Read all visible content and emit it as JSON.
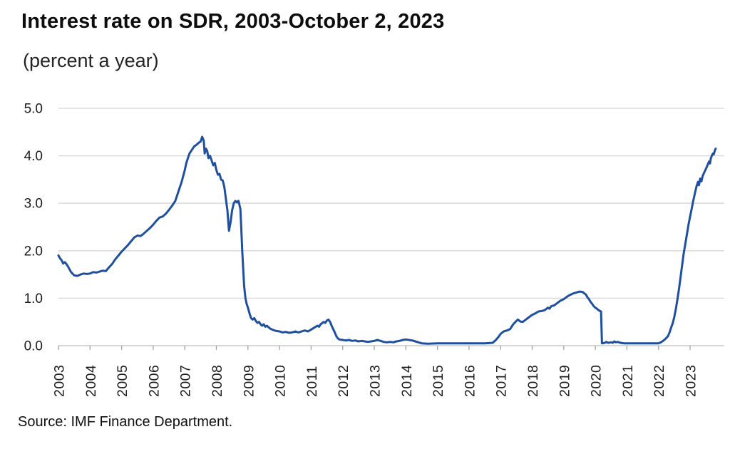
{
  "chart_data": {
    "type": "line",
    "title": "Interest rate on SDR, 2003-October 2, 2023",
    "subtitle": "(percent a year)",
    "source": "Source: IMF Finance Department.",
    "xlabel": "",
    "ylabel": "",
    "legend": "none",
    "grid": "horizontal",
    "x_domain": [
      2003,
      2024
    ],
    "ylim": [
      0.0,
      5.0
    ],
    "y_ticks": [
      {
        "value": 5,
        "label": "5.0"
      },
      {
        "value": 4,
        "label": "4.0"
      },
      {
        "value": 3,
        "label": "3.0"
      },
      {
        "value": 2,
        "label": "2.0"
      },
      {
        "value": 1,
        "label": "1.0"
      },
      {
        "value": 0,
        "label": "0.0"
      }
    ],
    "x_tick_labels": [
      "2003",
      "2004",
      "2005",
      "2006",
      "2007",
      "2008",
      "2009",
      "2010",
      "2011",
      "2012",
      "2013",
      "2014",
      "2015",
      "2016",
      "2017",
      "2018",
      "2019",
      "2020",
      "2021",
      "2022",
      "2023"
    ],
    "line_color": "#1f4f9f",
    "series": [
      {
        "name": "SDR interest rate (percent a year)",
        "points": [
          [
            2003.0,
            1.9
          ],
          [
            2003.05,
            1.84
          ],
          [
            2003.1,
            1.8
          ],
          [
            2003.15,
            1.73
          ],
          [
            2003.2,
            1.76
          ],
          [
            2003.25,
            1.72
          ],
          [
            2003.3,
            1.67
          ],
          [
            2003.4,
            1.55
          ],
          [
            2003.5,
            1.48
          ],
          [
            2003.6,
            1.47
          ],
          [
            2003.7,
            1.5
          ],
          [
            2003.8,
            1.52
          ],
          [
            2003.9,
            1.51
          ],
          [
            2004.0,
            1.52
          ],
          [
            2004.1,
            1.55
          ],
          [
            2004.2,
            1.54
          ],
          [
            2004.3,
            1.56
          ],
          [
            2004.4,
            1.58
          ],
          [
            2004.5,
            1.57
          ],
          [
            2004.6,
            1.65
          ],
          [
            2004.7,
            1.72
          ],
          [
            2004.8,
            1.82
          ],
          [
            2004.9,
            1.9
          ],
          [
            2005.0,
            1.98
          ],
          [
            2005.1,
            2.05
          ],
          [
            2005.2,
            2.12
          ],
          [
            2005.3,
            2.2
          ],
          [
            2005.4,
            2.28
          ],
          [
            2005.5,
            2.32
          ],
          [
            2005.6,
            2.31
          ],
          [
            2005.7,
            2.36
          ],
          [
            2005.8,
            2.42
          ],
          [
            2005.9,
            2.48
          ],
          [
            2006.0,
            2.55
          ],
          [
            2006.1,
            2.63
          ],
          [
            2006.2,
            2.7
          ],
          [
            2006.3,
            2.72
          ],
          [
            2006.4,
            2.78
          ],
          [
            2006.5,
            2.86
          ],
          [
            2006.6,
            2.95
          ],
          [
            2006.7,
            3.05
          ],
          [
            2006.8,
            3.25
          ],
          [
            2006.9,
            3.45
          ],
          [
            2007.0,
            3.7
          ],
          [
            2007.05,
            3.85
          ],
          [
            2007.1,
            3.95
          ],
          [
            2007.15,
            4.05
          ],
          [
            2007.2,
            4.1
          ],
          [
            2007.25,
            4.15
          ],
          [
            2007.3,
            4.2
          ],
          [
            2007.35,
            4.22
          ],
          [
            2007.4,
            4.25
          ],
          [
            2007.45,
            4.28
          ],
          [
            2007.5,
            4.3
          ],
          [
            2007.55,
            4.4
          ],
          [
            2007.6,
            4.32
          ],
          [
            2007.63,
            4.05
          ],
          [
            2007.67,
            4.15
          ],
          [
            2007.71,
            4.1
          ],
          [
            2007.75,
            3.95
          ],
          [
            2007.8,
            4.0
          ],
          [
            2007.85,
            3.9
          ],
          [
            2007.9,
            3.8
          ],
          [
            2007.95,
            3.85
          ],
          [
            2008.0,
            3.7
          ],
          [
            2008.05,
            3.6
          ],
          [
            2008.1,
            3.62
          ],
          [
            2008.15,
            3.5
          ],
          [
            2008.2,
            3.48
          ],
          [
            2008.25,
            3.35
          ],
          [
            2008.3,
            3.1
          ],
          [
            2008.35,
            2.85
          ],
          [
            2008.4,
            2.42
          ],
          [
            2008.45,
            2.6
          ],
          [
            2008.5,
            2.85
          ],
          [
            2008.55,
            3.0
          ],
          [
            2008.6,
            3.05
          ],
          [
            2008.65,
            3.02
          ],
          [
            2008.7,
            3.05
          ],
          [
            2008.73,
            2.97
          ],
          [
            2008.76,
            2.88
          ],
          [
            2008.79,
            2.45
          ],
          [
            2008.82,
            2.0
          ],
          [
            2008.85,
            1.6
          ],
          [
            2008.88,
            1.25
          ],
          [
            2008.92,
            1.0
          ],
          [
            2008.96,
            0.88
          ],
          [
            2009.0,
            0.8
          ],
          [
            2009.05,
            0.68
          ],
          [
            2009.1,
            0.58
          ],
          [
            2009.15,
            0.55
          ],
          [
            2009.2,
            0.58
          ],
          [
            2009.25,
            0.52
          ],
          [
            2009.3,
            0.48
          ],
          [
            2009.35,
            0.5
          ],
          [
            2009.4,
            0.45
          ],
          [
            2009.45,
            0.42
          ],
          [
            2009.5,
            0.45
          ],
          [
            2009.55,
            0.4
          ],
          [
            2009.6,
            0.42
          ],
          [
            2009.7,
            0.36
          ],
          [
            2009.8,
            0.33
          ],
          [
            2009.9,
            0.31
          ],
          [
            2010.0,
            0.3
          ],
          [
            2010.1,
            0.28
          ],
          [
            2010.2,
            0.29
          ],
          [
            2010.3,
            0.27
          ],
          [
            2010.4,
            0.28
          ],
          [
            2010.5,
            0.3
          ],
          [
            2010.6,
            0.28
          ],
          [
            2010.7,
            0.3
          ],
          [
            2010.8,
            0.32
          ],
          [
            2010.9,
            0.3
          ],
          [
            2011.0,
            0.34
          ],
          [
            2011.1,
            0.38
          ],
          [
            2011.2,
            0.42
          ],
          [
            2011.25,
            0.4
          ],
          [
            2011.3,
            0.45
          ],
          [
            2011.4,
            0.5
          ],
          [
            2011.45,
            0.48
          ],
          [
            2011.5,
            0.53
          ],
          [
            2011.55,
            0.55
          ],
          [
            2011.6,
            0.5
          ],
          [
            2011.65,
            0.42
          ],
          [
            2011.7,
            0.35
          ],
          [
            2011.75,
            0.28
          ],
          [
            2011.8,
            0.2
          ],
          [
            2011.85,
            0.15
          ],
          [
            2011.9,
            0.13
          ],
          [
            2012.0,
            0.12
          ],
          [
            2012.1,
            0.11
          ],
          [
            2012.2,
            0.12
          ],
          [
            2012.3,
            0.1
          ],
          [
            2012.4,
            0.11
          ],
          [
            2012.5,
            0.09
          ],
          [
            2012.6,
            0.1
          ],
          [
            2012.7,
            0.09
          ],
          [
            2012.8,
            0.08
          ],
          [
            2012.9,
            0.09
          ],
          [
            2013.0,
            0.1
          ],
          [
            2013.1,
            0.12
          ],
          [
            2013.2,
            0.1
          ],
          [
            2013.3,
            0.08
          ],
          [
            2013.4,
            0.07
          ],
          [
            2013.5,
            0.08
          ],
          [
            2013.6,
            0.07
          ],
          [
            2013.7,
            0.09
          ],
          [
            2013.8,
            0.1
          ],
          [
            2013.9,
            0.12
          ],
          [
            2014.0,
            0.13
          ],
          [
            2014.1,
            0.12
          ],
          [
            2014.2,
            0.11
          ],
          [
            2014.3,
            0.09
          ],
          [
            2014.4,
            0.07
          ],
          [
            2014.5,
            0.05
          ],
          [
            2014.7,
            0.04
          ],
          [
            2015.0,
            0.05
          ],
          [
            2015.5,
            0.05
          ],
          [
            2016.0,
            0.05
          ],
          [
            2016.5,
            0.05
          ],
          [
            2016.75,
            0.06
          ],
          [
            2016.85,
            0.12
          ],
          [
            2016.95,
            0.2
          ],
          [
            2017.0,
            0.25
          ],
          [
            2017.1,
            0.3
          ],
          [
            2017.2,
            0.32
          ],
          [
            2017.3,
            0.35
          ],
          [
            2017.4,
            0.45
          ],
          [
            2017.5,
            0.52
          ],
          [
            2017.55,
            0.55
          ],
          [
            2017.62,
            0.51
          ],
          [
            2017.7,
            0.5
          ],
          [
            2017.8,
            0.55
          ],
          [
            2017.9,
            0.6
          ],
          [
            2018.0,
            0.65
          ],
          [
            2018.1,
            0.68
          ],
          [
            2018.2,
            0.72
          ],
          [
            2018.3,
            0.73
          ],
          [
            2018.4,
            0.75
          ],
          [
            2018.5,
            0.8
          ],
          [
            2018.55,
            0.78
          ],
          [
            2018.6,
            0.83
          ],
          [
            2018.7,
            0.85
          ],
          [
            2018.8,
            0.9
          ],
          [
            2018.9,
            0.95
          ],
          [
            2019.0,
            0.98
          ],
          [
            2019.1,
            1.03
          ],
          [
            2019.2,
            1.07
          ],
          [
            2019.3,
            1.1
          ],
          [
            2019.4,
            1.12
          ],
          [
            2019.5,
            1.14
          ],
          [
            2019.6,
            1.13
          ],
          [
            2019.65,
            1.1
          ],
          [
            2019.7,
            1.08
          ],
          [
            2019.75,
            1.02
          ],
          [
            2019.8,
            0.98
          ],
          [
            2019.85,
            0.92
          ],
          [
            2019.9,
            0.88
          ],
          [
            2019.95,
            0.83
          ],
          [
            2020.0,
            0.8
          ],
          [
            2020.05,
            0.78
          ],
          [
            2020.1,
            0.75
          ],
          [
            2020.15,
            0.73
          ],
          [
            2020.18,
            0.72
          ],
          [
            2020.21,
            0.05
          ],
          [
            2020.3,
            0.06
          ],
          [
            2020.35,
            0.08
          ],
          [
            2020.4,
            0.06
          ],
          [
            2020.5,
            0.07
          ],
          [
            2020.55,
            0.06
          ],
          [
            2020.6,
            0.09
          ],
          [
            2020.65,
            0.07
          ],
          [
            2020.7,
            0.08
          ],
          [
            2020.8,
            0.06
          ],
          [
            2020.9,
            0.05
          ],
          [
            2021.0,
            0.05
          ],
          [
            2021.25,
            0.05
          ],
          [
            2021.5,
            0.05
          ],
          [
            2021.75,
            0.05
          ],
          [
            2022.0,
            0.05
          ],
          [
            2022.1,
            0.08
          ],
          [
            2022.2,
            0.13
          ],
          [
            2022.3,
            0.2
          ],
          [
            2022.35,
            0.28
          ],
          [
            2022.4,
            0.38
          ],
          [
            2022.45,
            0.47
          ],
          [
            2022.5,
            0.6
          ],
          [
            2022.55,
            0.78
          ],
          [
            2022.6,
            0.98
          ],
          [
            2022.65,
            1.2
          ],
          [
            2022.7,
            1.45
          ],
          [
            2022.75,
            1.7
          ],
          [
            2022.8,
            1.95
          ],
          [
            2022.85,
            2.15
          ],
          [
            2022.9,
            2.35
          ],
          [
            2022.95,
            2.55
          ],
          [
            2023.0,
            2.72
          ],
          [
            2023.05,
            2.88
          ],
          [
            2023.1,
            3.05
          ],
          [
            2023.15,
            3.2
          ],
          [
            2023.2,
            3.35
          ],
          [
            2023.25,
            3.45
          ],
          [
            2023.28,
            3.38
          ],
          [
            2023.32,
            3.52
          ],
          [
            2023.36,
            3.46
          ],
          [
            2023.4,
            3.58
          ],
          [
            2023.45,
            3.65
          ],
          [
            2023.5,
            3.72
          ],
          [
            2023.55,
            3.8
          ],
          [
            2023.6,
            3.88
          ],
          [
            2023.63,
            3.84
          ],
          [
            2023.66,
            3.95
          ],
          [
            2023.7,
            4.02
          ],
          [
            2023.73,
            4.05
          ],
          [
            2023.75,
            4.03
          ],
          [
            2023.77,
            4.08
          ],
          [
            2023.79,
            4.12
          ],
          [
            2023.81,
            4.15
          ]
        ]
      }
    ]
  }
}
